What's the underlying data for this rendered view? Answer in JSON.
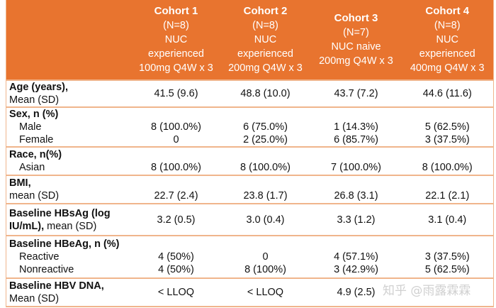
{
  "columns": [
    {
      "title": "Cohort 1",
      "n": "(N=8)",
      "line1": "NUC",
      "line2": "experienced",
      "dose": "100mg Q4W x 3"
    },
    {
      "title": "Cohort 2",
      "n": "(N=8)",
      "line1": "NUC",
      "line2": "experienced",
      "dose": "200mg Q4W x 3"
    },
    {
      "title": "Cohort 3",
      "n": "(N=7)",
      "line1": "",
      "line2": "NUC naive",
      "dose": "200mg Q4W x 3"
    },
    {
      "title": "Cohort 4",
      "n": "(N=8)",
      "line1": "NUC",
      "line2": "experienced",
      "dose": "400mg Q4W x 3"
    }
  ],
  "rows": {
    "age": {
      "bold": "Age (years),",
      "rest": "Mean (SD)",
      "values": [
        "41.5 (9.6)",
        "48.8 (10.0)",
        "43.7 (7.2)",
        "44.6 (11.6)"
      ]
    },
    "sex": {
      "bold": "Sex, n (%)",
      "sub": [
        {
          "label": "Male",
          "values": [
            "8 (100.0%)",
            "6 (75.0%)",
            "1 (14.3%)",
            "5 (62.5%)"
          ]
        },
        {
          "label": "Female",
          "values": [
            "0",
            "2 (25.0%)",
            "6 (85.7%)",
            "3 (37.5%)"
          ]
        }
      ]
    },
    "race": {
      "bold": "Race, n(%)",
      "sub": [
        {
          "label": "Asian",
          "values": [
            "8 (100.0%)",
            "8 (100.0%)",
            "7 (100.0%)",
            "8 (100.0%)"
          ]
        }
      ]
    },
    "bmi": {
      "bold": "BMI,",
      "rest": "mean (SD)",
      "values": [
        "22.7 (2.4)",
        "23.8 (1.7)",
        "26.8 (3.1)",
        "22.1 (2.1)"
      ]
    },
    "hbsag": {
      "bold": "Baseline HBsAg (log IU/mL),",
      "rest": "mean (SD)",
      "values": [
        "3.2 (0.5)",
        "3.0 (0.4)",
        "3.3 (1.2)",
        "3.1 (0.4)"
      ]
    },
    "hbeag": {
      "bold": "Baseline HBeAg, n (%)",
      "sub": [
        {
          "label": "Reactive",
          "values": [
            "4 (50%)",
            "0",
            "4 (57.1%)",
            "3 (37.5%)"
          ]
        },
        {
          "label": "Nonreactive",
          "values": [
            "4 (50%)",
            "8 (100%)",
            "3 (42.9%)",
            "5 (62.5%)"
          ]
        }
      ]
    },
    "dna": {
      "bold": "Baseline HBV DNA,",
      "rest": "Mean (SD)",
      "values": [
        "< LLOQ",
        "< LLOQ",
        "4.9 (2.5)",
        ""
      ]
    }
  },
  "watermark": "知乎 @雨露霖霖",
  "colors": {
    "header": "#E8742F",
    "border": "#F0B58C"
  }
}
